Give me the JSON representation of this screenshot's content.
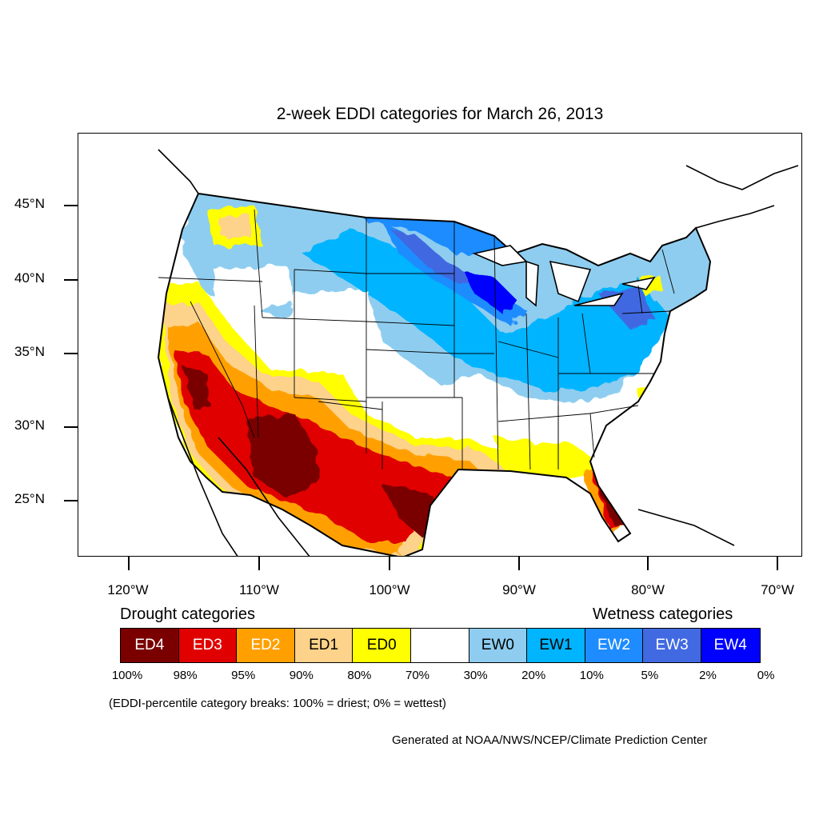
{
  "title": "2-week EDDI categories for March 26, 2013",
  "map": {
    "projection": "lambert-conformal-conus",
    "lat_labels": [
      "45°N",
      "40°N",
      "35°N",
      "30°N",
      "25°N"
    ],
    "lon_labels": [
      "120°W",
      "110°W",
      "100°W",
      "90°W",
      "80°W",
      "70°W"
    ],
    "regions": [
      {
        "area": "Pacific Northwest / Great Basin",
        "category": "EW0"
      },
      {
        "area": "Northern Plains",
        "category": "EW3"
      },
      {
        "area": "Upper Midwest / Great Lakes",
        "category": "EW2"
      },
      {
        "area": "Midwest / Ohio Valley",
        "category": "EW1"
      },
      {
        "area": "Northeast",
        "category": "EW2"
      },
      {
        "area": "Southern California coast",
        "category": "ED4"
      },
      {
        "area": "Arizona / New Mexico",
        "category": "ED4"
      },
      {
        "area": "Texas",
        "category": "ED3"
      },
      {
        "area": "Florida peninsula",
        "category": "ED3"
      },
      {
        "area": "Southeast",
        "category": "none"
      },
      {
        "area": "Central High Plains",
        "category": "none"
      }
    ]
  },
  "legend": {
    "drought_heading": "Drought categories",
    "wetness_heading": "Wetness categories",
    "categories": [
      {
        "label": "ED4",
        "color": "#7a0000",
        "text_color": "#ffffff"
      },
      {
        "label": "ED3",
        "color": "#e00000",
        "text_color": "#ffffff"
      },
      {
        "label": "ED2",
        "color": "#ffa000",
        "text_color": "#ffffff"
      },
      {
        "label": "ED1",
        "color": "#fdd28a",
        "text_color": "#000000"
      },
      {
        "label": "ED0",
        "color": "#ffff00",
        "text_color": "#000000"
      },
      {
        "label": "",
        "color": "#ffffff",
        "text_color": "#000000"
      },
      {
        "label": "EW0",
        "color": "#8ecdef",
        "text_color": "#000000"
      },
      {
        "label": "EW1",
        "color": "#00b4ff",
        "text_color": "#000000"
      },
      {
        "label": "EW2",
        "color": "#1e8cff",
        "text_color": "#ffffff"
      },
      {
        "label": "EW3",
        "color": "#4169e1",
        "text_color": "#ffffff"
      },
      {
        "label": "EW4",
        "color": "#0000ff",
        "text_color": "#ffffff"
      }
    ],
    "breaks": [
      "100%",
      "98%",
      "95%",
      "90%",
      "80%",
      "70%",
      "30%",
      "20%",
      "10%",
      "5%",
      "2%",
      "0%"
    ]
  },
  "note": "(EDDI-percentile category breaks: 100% = driest; 0% = wettest)",
  "credit": "Generated at NOAA/NWS/NCEP/Climate Prediction Center"
}
